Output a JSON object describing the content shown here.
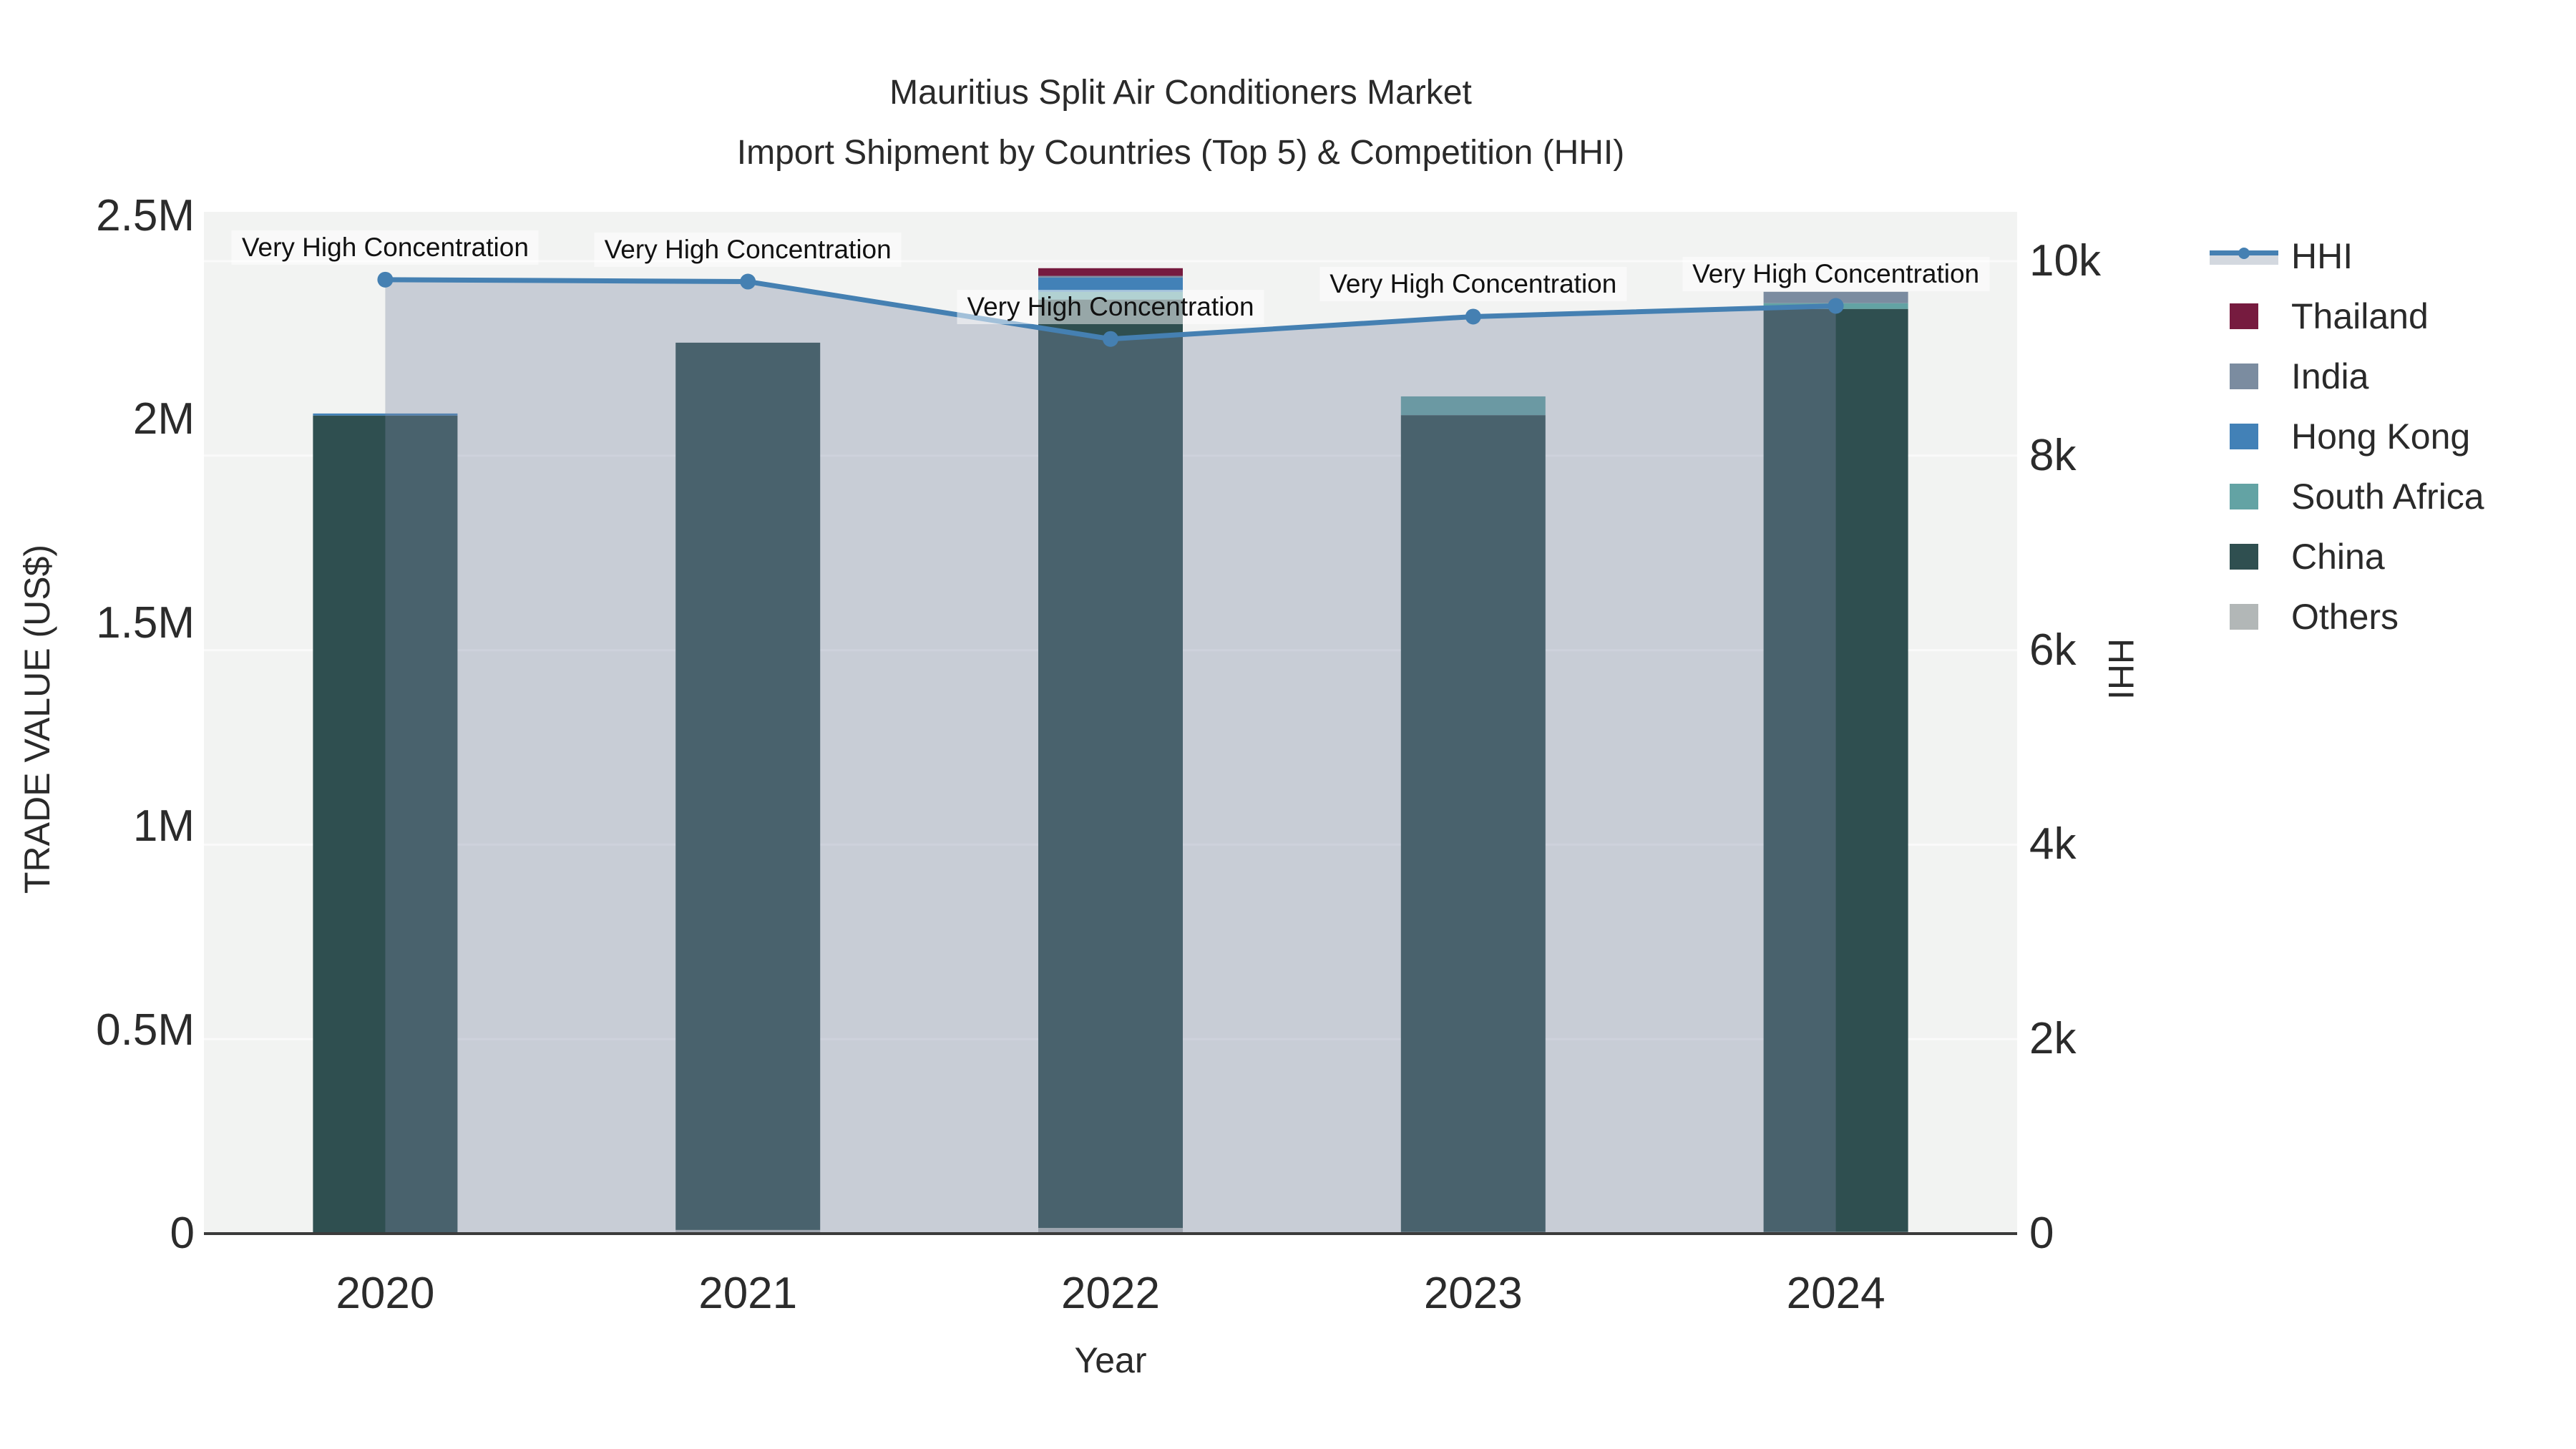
{
  "title": {
    "line1": "Mauritius Split Air Conditioners Market",
    "line2": "Import Shipment by Countries (Top 5) & Competition (HHI)"
  },
  "axes": {
    "x": {
      "title": "Year"
    },
    "y_left": {
      "title": "TRADE VALUE (US$)",
      "ticks": [
        {
          "label": "0",
          "value": 0
        },
        {
          "label": "0.5M",
          "value": 500000
        },
        {
          "label": "1M",
          "value": 1000000
        },
        {
          "label": "1.5M",
          "value": 1500000
        },
        {
          "label": "2M",
          "value": 2000000
        },
        {
          "label": "2.5M",
          "value": 2500000
        }
      ]
    },
    "y_right": {
      "title": "HHI",
      "ticks": [
        {
          "label": "0",
          "value": 0
        },
        {
          "label": "2k",
          "value": 2000
        },
        {
          "label": "4k",
          "value": 4000
        },
        {
          "label": "6k",
          "value": 6000
        },
        {
          "label": "8k",
          "value": 8000
        },
        {
          "label": "10k",
          "value": 10000
        }
      ]
    }
  },
  "legend": {
    "items": [
      {
        "label": "HHI",
        "type": "line",
        "color": "#4580B2",
        "band": "#D3D8DF"
      },
      {
        "label": "Thailand",
        "type": "square",
        "color": "#761B3F"
      },
      {
        "label": "India",
        "type": "square",
        "color": "#7B8CA0"
      },
      {
        "label": "Hong Kong",
        "type": "square",
        "color": "#4281B7"
      },
      {
        "label": "South Africa",
        "type": "square",
        "color": "#63A3A4"
      },
      {
        "label": "China",
        "type": "square",
        "color": "#2F4F50"
      },
      {
        "label": "Others",
        "type": "square",
        "color": "#B2B7B7"
      }
    ]
  },
  "chart_data": {
    "type": "bar+line",
    "title": "Mauritius Split Air Conditioners Market — Import Shipment by Countries (Top 5) & Competition (HHI)",
    "xlabel": "Year",
    "ylabel_left": "TRADE VALUE (US$)",
    "ylabel_right": "HHI",
    "ylim_left": [
      0,
      2500000
    ],
    "ylim_right": [
      0,
      10000
    ],
    "grid": "on",
    "legend_position": "right",
    "categories": [
      "2020",
      "2021",
      "2022",
      "2023",
      "2024"
    ],
    "bar_series": [
      {
        "name": "Others",
        "color": "#B2B7B7",
        "values": [
          0,
          9000,
          14000,
          4000,
          4000
        ]
      },
      {
        "name": "China",
        "color": "#2F4F50",
        "values": [
          2010000,
          2180000,
          2281000,
          2007000,
          2268000
        ]
      },
      {
        "name": "South Africa",
        "color": "#63A3A4",
        "values": [
          0,
          0,
          19000,
          46000,
          14000
        ]
      },
      {
        "name": "Hong Kong",
        "color": "#4281B7",
        "values": [
          5000,
          0,
          35000,
          0,
          0
        ]
      },
      {
        "name": "India",
        "color": "#7B8CA0",
        "values": [
          0,
          0,
          4000,
          0,
          28000
        ]
      },
      {
        "name": "Thailand",
        "color": "#761B3F",
        "values": [
          0,
          0,
          19000,
          0,
          0
        ]
      }
    ],
    "line_series": {
      "name": "HHI",
      "color": "#4580B2",
      "area_fill": "rgba(122,136,162,0.35)",
      "values": [
        9810,
        9790,
        9200,
        9430,
        9540
      ]
    },
    "annotations": [
      "Very High Concentration",
      "Very High Concentration",
      "Very High Concentration",
      "Very High Concentration",
      "Very High Concentration"
    ],
    "plot_bg": "#F2F3F2",
    "gridline_color": "#FAFAFA",
    "axisline_color": "#3B3B3B"
  }
}
